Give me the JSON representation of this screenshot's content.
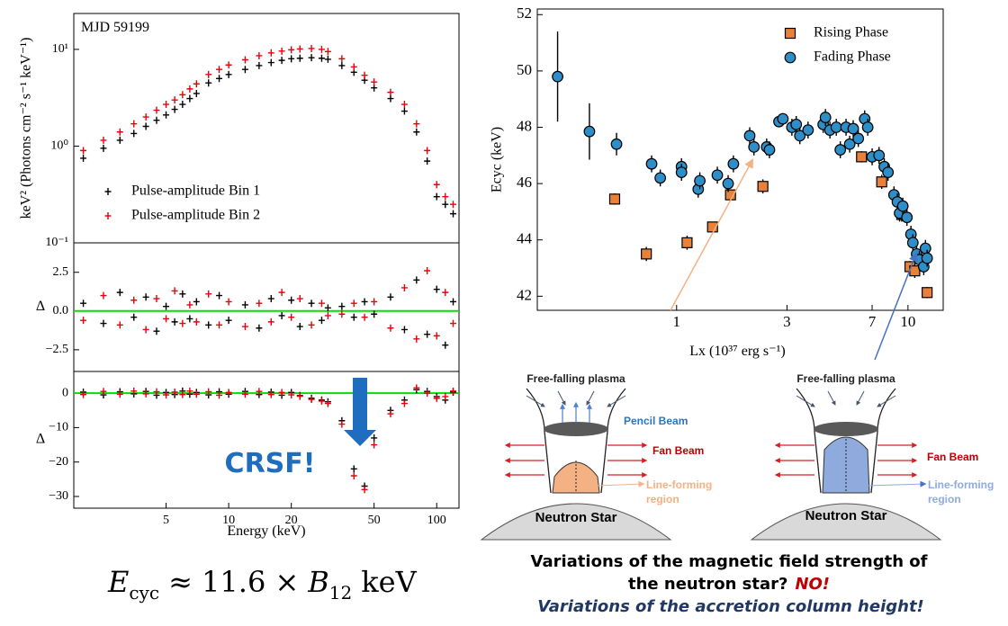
{
  "chart_data": [
    {
      "type": "scatter",
      "log_x": true,
      "log_y": true,
      "annotation": "MJD 59199",
      "ylabel": "keV² (Photons cm⁻² s⁻¹ keV⁻¹)",
      "xlim": [
        1.8,
        128
      ],
      "ylim": [
        0.1,
        23.5
      ],
      "yticks": [
        {
          "value": 0.1,
          "label": "10⁻¹"
        },
        {
          "value": 1,
          "label": "10⁰"
        },
        {
          "value": 10,
          "label": "10¹"
        }
      ],
      "legend": "lower left",
      "x": [
        2,
        2.5,
        3,
        3.5,
        4,
        4.5,
        5,
        5.5,
        6,
        6.5,
        7,
        8,
        9,
        10,
        12,
        14,
        16,
        18,
        20,
        22,
        25,
        28,
        30,
        35,
        40,
        45,
        50,
        60,
        70,
        80,
        90,
        100,
        110,
        120
      ],
      "series": [
        {
          "name": "Pulse-amplitude Bin 1",
          "color": "#000000",
          "values": [
            0.75,
            0.95,
            1.15,
            1.35,
            1.6,
            1.85,
            2.1,
            2.4,
            2.7,
            3.1,
            3.5,
            4.5,
            5.0,
            5.5,
            6.2,
            6.8,
            7.3,
            7.7,
            8.0,
            8.1,
            8.2,
            8.1,
            7.9,
            6.8,
            5.8,
            4.8,
            4.0,
            3.1,
            2.3,
            1.4,
            0.7,
            0.3,
            0.25,
            0.2
          ]
        },
        {
          "name": "Pulse-amplitude Bin 2",
          "color": "#e8000b",
          "values": [
            0.9,
            1.15,
            1.4,
            1.7,
            2.0,
            2.35,
            2.7,
            3.0,
            3.4,
            3.9,
            4.4,
            5.5,
            6.2,
            6.9,
            7.8,
            8.6,
            9.2,
            9.6,
            9.9,
            10.1,
            10.2,
            10.0,
            9.5,
            8.0,
            6.6,
            5.4,
            4.6,
            3.6,
            2.7,
            1.7,
            0.9,
            0.4,
            0.3,
            0.25
          ]
        }
      ]
    },
    {
      "type": "scatter",
      "log_x": true,
      "ylabel": "Δ",
      "reference_line": 0,
      "reference_color": "#00e000",
      "xlim": [
        1.8,
        128
      ],
      "ylim": [
        -3.9,
        4.4
      ],
      "yticks": [
        {
          "value": -2.5,
          "label": "−2.5"
        },
        {
          "value": 0,
          "label": "0.0"
        },
        2.5
      ],
      "x": [
        2,
        2.5,
        3,
        3.5,
        4,
        4.5,
        5,
        5.5,
        6,
        6.5,
        7,
        8,
        9,
        10,
        12,
        14,
        16,
        18,
        20,
        22,
        25,
        28,
        30,
        35,
        40,
        45,
        50,
        60,
        70,
        80,
        90,
        100,
        110,
        120
      ],
      "series": [
        {
          "color": "#000000",
          "values": [
            0.5,
            -0.8,
            1.2,
            -0.4,
            0.9,
            -1.3,
            0.3,
            -0.7,
            1.1,
            -0.5,
            0.6,
            -0.9,
            1.0,
            -0.6,
            0.4,
            -1.1,
            0.8,
            -0.3,
            0.7,
            -1.0,
            0.5,
            -0.6,
            0.2,
            0.3,
            -0.4,
            0.6,
            -0.2,
            0.9,
            -1.2,
            2.0,
            -1.5,
            1.4,
            -2.2,
            0.6
          ]
        },
        {
          "color": "#e8000b",
          "values": [
            -0.6,
            1.0,
            -0.9,
            0.7,
            -1.2,
            0.8,
            -0.5,
            1.3,
            -0.8,
            0.4,
            -0.7,
            1.1,
            -0.9,
            0.6,
            -1.0,
            0.5,
            -0.7,
            1.2,
            -0.4,
            0.8,
            -0.9,
            0.5,
            -0.3,
            -0.2,
            0.5,
            -0.4,
            0.6,
            -1.1,
            1.5,
            -1.8,
            2.6,
            -1.6,
            1.2,
            -0.8
          ]
        }
      ]
    },
    {
      "type": "scatter",
      "log_x": true,
      "ylabel": "Δ",
      "xlabel": "Energy (keV)",
      "reference_line": 0,
      "reference_color": "#00e000",
      "annotation": "CRSF!",
      "xlim": [
        1.8,
        128
      ],
      "ylim": [
        -33.4,
        6.3
      ],
      "xticks": [
        5,
        10,
        20,
        50,
        100
      ],
      "yticks": [
        {
          "value": -30,
          "label": "−30"
        },
        {
          "value": -20,
          "label": "−20"
        },
        {
          "value": -10,
          "label": "−10"
        },
        0
      ],
      "x": [
        2,
        2.5,
        3,
        3.5,
        4,
        4.5,
        5,
        5.5,
        6,
        6.5,
        7,
        8,
        9,
        10,
        12,
        14,
        16,
        18,
        20,
        22,
        25,
        28,
        30,
        35,
        40,
        45,
        50,
        60,
        70,
        80,
        90,
        100,
        110,
        120
      ],
      "series": [
        {
          "color": "#000000",
          "values": [
            0.3,
            -0.5,
            0.4,
            -0.2,
            0.5,
            -0.6,
            0.2,
            -0.4,
            0.6,
            -0.3,
            0.2,
            -0.5,
            0.4,
            -0.3,
            0.5,
            -0.4,
            0.3,
            -0.6,
            0.2,
            -0.7,
            -1.5,
            -2.0,
            -2.5,
            -8,
            -22,
            -27,
            -13,
            -5,
            -2,
            1,
            0.5,
            -1,
            -2,
            0.3
          ]
        },
        {
          "color": "#e8000b",
          "values": [
            -0.4,
            0.5,
            -0.3,
            0.6,
            -0.2,
            0.4,
            -0.5,
            0.3,
            -0.4,
            0.6,
            -0.3,
            0.4,
            -0.6,
            0.2,
            -0.3,
            0.5,
            -0.4,
            0.2,
            -0.5,
            -0.9,
            -1.8,
            -2.3,
            -3,
            -9,
            -24,
            -28,
            -15,
            -6,
            -3,
            1.5,
            0,
            -1.5,
            -1,
            0.6
          ]
        }
      ]
    },
    {
      "type": "scatter",
      "log_x": true,
      "xlabel": "Lx (10³⁷ erg s⁻¹)",
      "ylabel": "Ecyc (keV)",
      "xlim": [
        0.25,
        14.2
      ],
      "ylim": [
        41.5,
        52.2
      ],
      "xticks": [
        1,
        3,
        7,
        10
      ],
      "yticks": [
        42,
        44,
        46,
        48,
        50,
        52
      ],
      "legend": "upper right",
      "series": [
        {
          "name": "Rising Phase",
          "marker": "square",
          "color": "#e8823a",
          "x": [
            0.54,
            0.74,
            1.11,
            1.43,
            1.71,
            2.36,
            6.3,
            7.7,
            9.4,
            10.2,
            10.7,
            12.1
          ],
          "values": [
            45.45,
            43.5,
            43.9,
            44.46,
            45.6,
            45.9,
            46.95,
            46.06,
            44.9,
            43.05,
            42.9,
            42.13
          ],
          "yerr": [
            0.2,
            0.25,
            0.25,
            0.15,
            0.15,
            0.25,
            0.2,
            0.25,
            0.25,
            0.2,
            0.25,
            0.2
          ]
        },
        {
          "name": "Fading Phase",
          "marker": "circle",
          "color": "#2e8fc8",
          "x": [
            0.306,
            0.42,
            0.55,
            0.78,
            0.85,
            1.05,
            1.05,
            1.24,
            1.26,
            1.5,
            1.67,
            1.76,
            2.07,
            2.16,
            2.45,
            2.52,
            2.77,
            2.88,
            3.15,
            3.29,
            3.41,
            3.7,
            4.3,
            4.4,
            4.6,
            4.9,
            5.1,
            5.4,
            5.6,
            5.8,
            6.1,
            6.5,
            6.7,
            7.0,
            7.5,
            7.9,
            8.2,
            8.7,
            9.0,
            9.2,
            9.5,
            9.9,
            10.3,
            10.5,
            10.9,
            11.2,
            11.7,
            11.9,
            12.1
          ],
          "values": [
            49.8,
            47.85,
            47.4,
            46.7,
            46.2,
            46.6,
            46.4,
            45.8,
            46.1,
            46.3,
            46.0,
            46.7,
            47.7,
            47.3,
            47.3,
            47.2,
            48.2,
            48.3,
            48.0,
            48.1,
            47.7,
            47.9,
            48.1,
            48.35,
            47.9,
            48.0,
            47.2,
            48.0,
            47.4,
            47.95,
            47.6,
            48.3,
            48.0,
            46.95,
            47.0,
            46.6,
            46.4,
            45.6,
            45.35,
            44.95,
            45.2,
            44.8,
            44.2,
            43.9,
            43.5,
            43.3,
            43.05,
            43.7,
            43.35
          ],
          "yerr": [
            1.6,
            1.0,
            0.4,
            0.3,
            0.3,
            0.3,
            0.3,
            0.3,
            0.3,
            0.3,
            0.3,
            0.3,
            0.3,
            0.3,
            0.3,
            0.3,
            0.2,
            0.2,
            0.3,
            0.3,
            0.3,
            0.3,
            0.3,
            0.3,
            0.3,
            0.3,
            0.3,
            0.3,
            0.3,
            0.3,
            0.3,
            0.3,
            0.3,
            0.3,
            0.3,
            0.3,
            0.3,
            0.3,
            0.3,
            0.3,
            0.3,
            0.3,
            0.3,
            0.3,
            0.3,
            0.3,
            0.3,
            0.3,
            0.3
          ]
        }
      ]
    }
  ],
  "diagrams": [
    {
      "plasma": "Free-falling plasma",
      "pencil": "Pencil Beam",
      "fan": "Fan Beam",
      "line_forming": [
        "Line-forming",
        "region"
      ],
      "star": "Neutron Star"
    },
    {
      "plasma": "Free-falling plasma",
      "fan": "Fan Beam",
      "line_forming": [
        "Line-forming",
        "region"
      ],
      "star": "Neutron Star"
    }
  ],
  "formula": [
    "E",
    "cyc",
    "≈ 11.6 ×",
    "B",
    "12",
    "keV"
  ],
  "caption": {
    "line1": "Variations of the magnetic field strength of",
    "line2": "the neutron star?",
    "no": "NO!",
    "line3": "Variations of the accretion column height!"
  }
}
